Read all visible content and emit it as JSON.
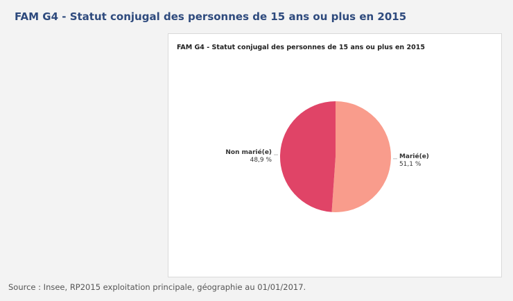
{
  "page": {
    "title": "FAM G4 - Statut conjugal des personnes de 15 ans ou plus en 2015",
    "source": "Source : Insee, RP2015 exploitation principale, géographie au 01/01/2017."
  },
  "chart_data": {
    "type": "pie",
    "title": "FAM G4 - Statut conjugal des personnes de 15 ans ou plus en 2015",
    "slices": [
      {
        "label": "Marié(e)",
        "value": 51.1,
        "value_label": "51,1 %",
        "color": "#f99c8c"
      },
      {
        "label": "Non marié(e)",
        "value": 48.9,
        "value_label": "48,9 %",
        "color": "#e04467"
      }
    ],
    "legend": "none",
    "data_labels": "outside"
  }
}
